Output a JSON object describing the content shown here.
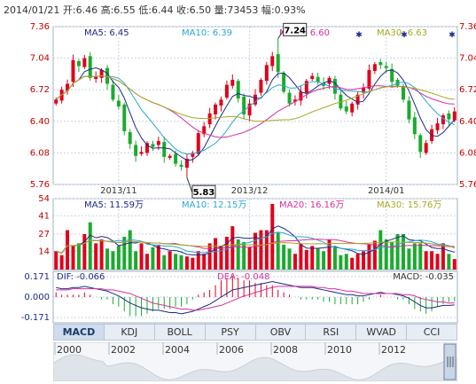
{
  "header": {
    "text": "2014/01/21 开:6.46 高:6.55 低:6.44 收:6.50 量:73453 幅:0.93%"
  },
  "colors": {
    "up": "#e0001b",
    "down": "#1aab2e",
    "ma5": "#1c2a86",
    "ma10": "#29a7d6",
    "ma20": "#d62f9c",
    "ma30": "#a6a81f",
    "grid": "#c8d2e0",
    "axis": "#c00000"
  },
  "chart_data": [
    {
      "type": "candlestick",
      "legend": [
        "MA5: 6.45",
        "MA10: 6.39",
        "MA20: 6.60",
        "MA30: 6.63"
      ],
      "y_ticks": [
        "7.36",
        "7.04",
        "6.72",
        "6.40",
        "6.08",
        "5.76"
      ],
      "ylim": [
        5.76,
        7.36
      ],
      "x_ticks": [
        "2013/11",
        "2013/12",
        "2014/01"
      ],
      "annotations": [
        {
          "label": "5.83",
          "value": 5.83,
          "note": "low"
        },
        {
          "label": "7.24",
          "value": 7.24,
          "note": "high"
        }
      ],
      "close": [
        6.62,
        6.72,
        6.78,
        7.02,
        6.96,
        7.04,
        6.84,
        6.85,
        6.92,
        6.78,
        6.62,
        6.55,
        6.3,
        6.17,
        6.05,
        6.09,
        6.18,
        6.14,
        6.2,
        6.04,
        6.05,
        5.97,
        5.94,
        6.02,
        6.08,
        6.28,
        6.35,
        6.48,
        6.57,
        6.62,
        6.77,
        6.82,
        6.63,
        6.47,
        6.58,
        6.67,
        6.82,
        6.97,
        7.06,
        6.9,
        6.7,
        6.58,
        6.62,
        6.7,
        6.81,
        6.86,
        6.8,
        6.76,
        6.84,
        6.68,
        6.53,
        6.5,
        6.58,
        6.67,
        6.74,
        6.92,
        6.98,
        6.97,
        6.94,
        6.8,
        6.76,
        6.62,
        6.42,
        6.27,
        6.09,
        6.18,
        6.32,
        6.38,
        6.46,
        6.42,
        6.5
      ]
    },
    {
      "type": "bar",
      "legend": [
        "MA5: 11.59万",
        "MA10: 12.15万",
        "MA20: 16.16万",
        "MA30: 15.76万"
      ],
      "y_ticks": [
        "54",
        "41",
        "27",
        "14"
      ],
      "ylim": [
        0,
        54
      ],
      "values": [
        14,
        11,
        30,
        18,
        20,
        27,
        36,
        20,
        23,
        16,
        14,
        18,
        25,
        30,
        14,
        20,
        12,
        17,
        19,
        11,
        14,
        12,
        11,
        10,
        9,
        14,
        12,
        20,
        24,
        18,
        25,
        33,
        23,
        21,
        17,
        28,
        30,
        30,
        50,
        28,
        19,
        16,
        12,
        20,
        15,
        18,
        16,
        14,
        23,
        17,
        11,
        12,
        9,
        12,
        14,
        19,
        22,
        30,
        23,
        21,
        27,
        27,
        16,
        20,
        20,
        14,
        14,
        12,
        20,
        12,
        8
      ]
    },
    {
      "type": "line",
      "legend": [
        "DIF: -0.066",
        "DEA: -0.048",
        "MACD: -0.035"
      ],
      "y_ticks": [
        "0.171",
        "0.000",
        "-0.171"
      ],
      "ylim": [
        -0.171,
        0.171
      ],
      "dif": [
        0.08,
        0.07,
        0.07,
        0.08,
        0.08,
        0.09,
        0.08,
        0.07,
        0.06,
        0.05,
        0.03,
        0.01,
        -0.02,
        -0.05,
        -0.07,
        -0.09,
        -0.1,
        -0.11,
        -0.11,
        -0.12,
        -0.13,
        -0.13,
        -0.14,
        -0.13,
        -0.12,
        -0.1,
        -0.08,
        -0.06,
        -0.03,
        0.0,
        0.03,
        0.06,
        0.07,
        0.08,
        0.09,
        0.1,
        0.11,
        0.12,
        0.13,
        0.12,
        0.11,
        0.1,
        0.09,
        0.08,
        0.08,
        0.08,
        0.07,
        0.06,
        0.05,
        0.04,
        0.03,
        0.02,
        0.02,
        0.01,
        0.01,
        0.02,
        0.03,
        0.04,
        0.03,
        0.03,
        0.02,
        0.01,
        -0.01,
        -0.04,
        -0.07,
        -0.09,
        -0.09,
        -0.08,
        -0.07,
        -0.07,
        -0.066
      ],
      "dea": [
        0.06,
        0.06,
        0.06,
        0.07,
        0.07,
        0.07,
        0.07,
        0.07,
        0.07,
        0.06,
        0.06,
        0.05,
        0.04,
        0.03,
        0.01,
        -0.01,
        -0.03,
        -0.05,
        -0.06,
        -0.07,
        -0.08,
        -0.09,
        -0.1,
        -0.1,
        -0.11,
        -0.11,
        -0.1,
        -0.09,
        -0.08,
        -0.07,
        -0.05,
        -0.03,
        -0.01,
        0.01,
        0.02,
        0.04,
        0.05,
        0.07,
        0.08,
        0.09,
        0.09,
        0.09,
        0.09,
        0.09,
        0.09,
        0.09,
        0.08,
        0.08,
        0.07,
        0.07,
        0.06,
        0.05,
        0.05,
        0.04,
        0.03,
        0.03,
        0.03,
        0.03,
        0.03,
        0.03,
        0.03,
        0.02,
        0.02,
        0.01,
        -0.01,
        -0.02,
        -0.03,
        -0.04,
        -0.04,
        -0.05,
        -0.048
      ],
      "macd": [
        0.04,
        0.02,
        0.02,
        0.02,
        0.02,
        0.04,
        0.02,
        0.0,
        -0.02,
        -0.02,
        -0.06,
        -0.08,
        -0.12,
        -0.16,
        -0.16,
        -0.16,
        -0.14,
        -0.12,
        -0.1,
        -0.1,
        -0.1,
        -0.08,
        -0.08,
        -0.06,
        -0.02,
        0.02,
        0.04,
        0.06,
        0.1,
        0.14,
        0.16,
        0.18,
        0.16,
        0.14,
        0.14,
        0.12,
        0.12,
        0.1,
        0.1,
        0.06,
        0.04,
        0.02,
        0.0,
        -0.02,
        -0.02,
        -0.02,
        -0.02,
        -0.04,
        -0.04,
        -0.06,
        -0.06,
        -0.06,
        -0.06,
        -0.06,
        -0.04,
        -0.02,
        0.0,
        0.02,
        0.0,
        0.0,
        -0.02,
        -0.02,
        -0.06,
        -0.1,
        -0.12,
        -0.14,
        -0.12,
        -0.08,
        -0.06,
        -0.04,
        -0.035
      ]
    }
  ],
  "tabs": [
    {
      "label": "MACD",
      "active": true
    },
    {
      "label": "KDJ"
    },
    {
      "label": "BOLL"
    },
    {
      "label": "PSY"
    },
    {
      "label": "OBV"
    },
    {
      "label": "RSI"
    },
    {
      "label": "WVAD"
    },
    {
      "label": "CCI"
    }
  ],
  "timeline": {
    "years": [
      "2000",
      "2002",
      "2004",
      "2006",
      "2008",
      "2010",
      "2012"
    ]
  }
}
